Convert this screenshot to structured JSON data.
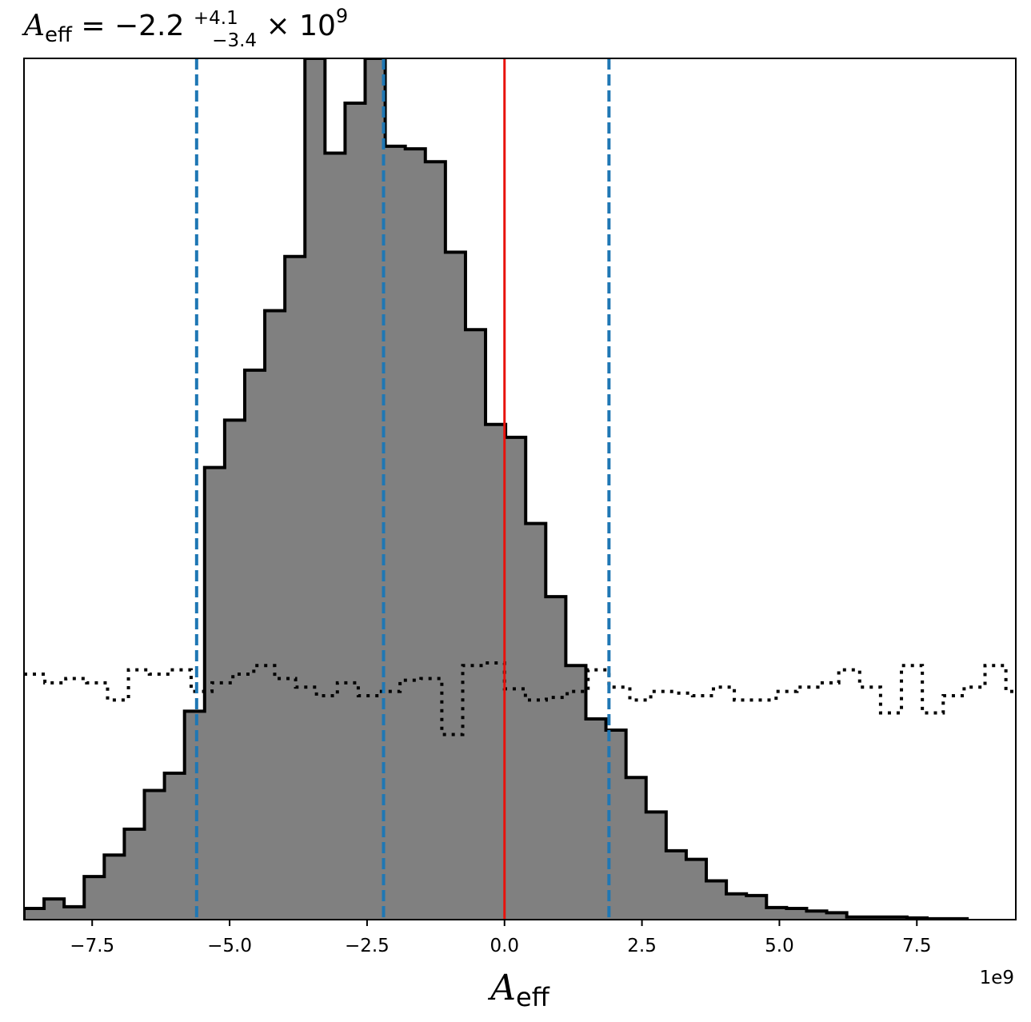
{
  "chart_data": {
    "type": "histogram",
    "title": {
      "symbol": "A",
      "symbol_sub": "eff",
      "equals": " = ",
      "median": "−2.2",
      "plus": "+4.1",
      "minus": "−3.4",
      "times_power": " × 10",
      "exponent": "9"
    },
    "xlabel": {
      "symbol": "A",
      "sub": "eff"
    },
    "x_offset_label": "1e9",
    "x_scale_factor": 1000000000,
    "xlim": [
      -8.74,
      9.3
    ],
    "x_ticks": [
      -7.5,
      -5.0,
      -2.5,
      0.0,
      2.5,
      5.0,
      7.5
    ],
    "x_tick_labels": [
      "−7.5",
      "−5.0",
      "−2.5",
      "0.0",
      "2.5",
      "5.0",
      "7.5"
    ],
    "y_axis_visible": false,
    "ylim": [
      0,
      1000
    ],
    "bin_width": 0.365,
    "posterior": {
      "style": "filled-step",
      "fill_color": "#808080",
      "edge_color": "#000000",
      "bins_start": -8.74,
      "counts": [
        13,
        24,
        15,
        50,
        75,
        105,
        150,
        170,
        242,
        525,
        580,
        638,
        707,
        770,
        1000,
        890,
        948,
        1000,
        898,
        895,
        880,
        775,
        685,
        575,
        560,
        460,
        375,
        295,
        233,
        220,
        165,
        125,
        80,
        70,
        45,
        30,
        28,
        14,
        13,
        10,
        8,
        3,
        3,
        3,
        2,
        1,
        1
      ]
    },
    "prior": {
      "style": "dotted-step",
      "line_color": "#000000",
      "counts": [
        285,
        275,
        280,
        275,
        255,
        290,
        285,
        290,
        265,
        275,
        285,
        295,
        280,
        270,
        260,
        275,
        260,
        265,
        278,
        280,
        215,
        295,
        298,
        268,
        255,
        258,
        265,
        290,
        270,
        255,
        265,
        263,
        260,
        270,
        255,
        255,
        265,
        270,
        275,
        290,
        270,
        240,
        295,
        240,
        260,
        270,
        295,
        265
      ],
      "bins_start": -8.74,
      "bin_width": 0.38
    },
    "reference_lines": [
      {
        "x": -5.6,
        "color": "#1f77b4",
        "style": "dashed"
      },
      {
        "x": -2.2,
        "color": "#1f77b4",
        "style": "dashed"
      },
      {
        "x": 1.9,
        "color": "#1f77b4",
        "style": "dashed"
      },
      {
        "x": 0.0,
        "color": "#e8120c",
        "style": "solid"
      }
    ]
  }
}
